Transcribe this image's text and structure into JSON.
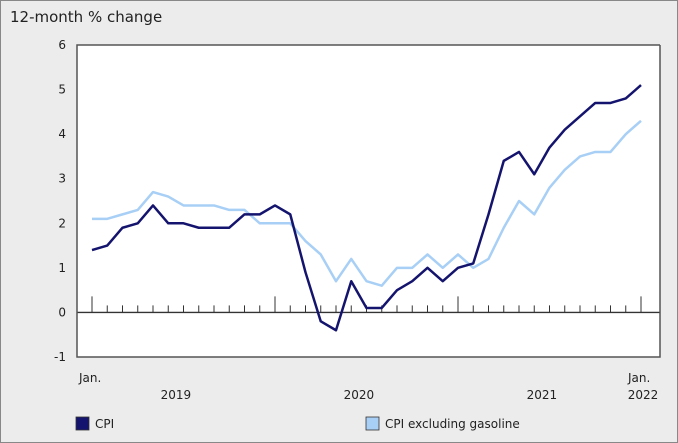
{
  "chart_data": {
    "type": "line",
    "ylabel": "12-month % change",
    "ylim": [
      -1,
      6
    ],
    "yticks": [
      -1,
      0,
      1,
      2,
      3,
      4,
      5,
      6
    ],
    "x_start": "2019-01",
    "x_end": "2022-01",
    "x_tick_labels": {
      "start": "Jan.",
      "end": "Jan.",
      "years": [
        "2019",
        "2020",
        "2021",
        "2022"
      ]
    },
    "grid": false,
    "legend_placement": "bottom",
    "series": [
      {
        "name": "CPI",
        "color": "#14146e",
        "values": [
          1.4,
          1.5,
          1.9,
          2.0,
          2.4,
          2.0,
          2.0,
          1.9,
          1.9,
          1.9,
          2.2,
          2.2,
          2.4,
          2.2,
          0.9,
          -0.2,
          -0.4,
          0.7,
          0.1,
          0.1,
          0.5,
          0.7,
          1.0,
          0.7,
          1.0,
          1.1,
          2.2,
          3.4,
          3.6,
          3.1,
          3.7,
          4.1,
          4.4,
          4.7,
          4.7,
          4.8,
          5.1
        ]
      },
      {
        "name": "CPI excluding gasoline",
        "color": "#a8cff5",
        "values": [
          2.1,
          2.1,
          2.2,
          2.3,
          2.7,
          2.6,
          2.4,
          2.4,
          2.4,
          2.3,
          2.3,
          2.0,
          2.0,
          2.0,
          1.6,
          1.3,
          0.7,
          1.2,
          0.7,
          0.6,
          1.0,
          1.0,
          1.3,
          1.0,
          1.3,
          1.0,
          1.2,
          1.9,
          2.5,
          2.2,
          2.8,
          3.2,
          3.5,
          3.6,
          3.6,
          4.0,
          4.3
        ]
      }
    ]
  }
}
